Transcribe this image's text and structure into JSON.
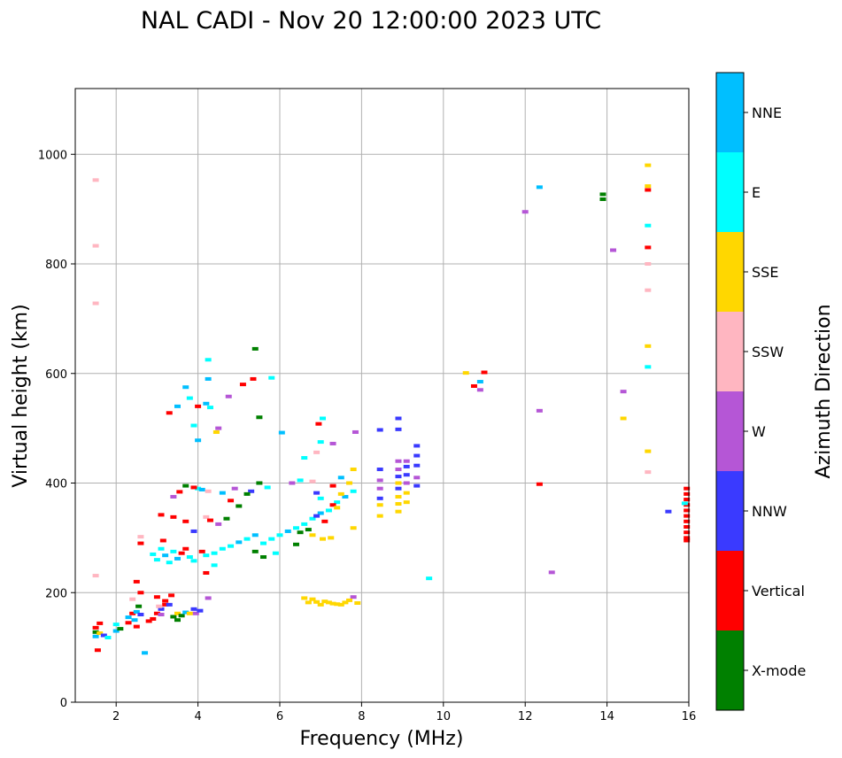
{
  "chart_data": {
    "type": "scatter",
    "title": "NAL CADI - Nov 20 12:00:00 2023 UTC",
    "xlabel": "Frequency (MHz)",
    "ylabel": "Virtual height (km)",
    "xlim": [
      1,
      16
    ],
    "ylim": [
      0,
      1120
    ],
    "xticks": [
      2,
      4,
      6,
      8,
      10,
      12,
      14,
      16
    ],
    "yticks": [
      0,
      200,
      400,
      600,
      800,
      1000
    ],
    "grid": true,
    "colorbar": {
      "label": "Azimuth Direction",
      "categories": [
        {
          "name": "X-mode",
          "color": "#008000"
        },
        {
          "name": "Vertical",
          "color": "#ff0000"
        },
        {
          "name": "NNW",
          "color": "#3a3aff"
        },
        {
          "name": "W",
          "color": "#b556d6"
        },
        {
          "name": "SSW",
          "color": "#ffb6c1"
        },
        {
          "name": "SSE",
          "color": "#ffd700"
        },
        {
          "name": "E",
          "color": "#00ffff"
        },
        {
          "name": "NNE",
          "color": "#00bfff"
        }
      ]
    },
    "points": [
      [
        "Vertical",
        15.95,
        300
      ],
      [
        "Vertical",
        15.95,
        310
      ],
      [
        "Vertical",
        15.95,
        320
      ],
      [
        "Vertical",
        15.95,
        330
      ],
      [
        "Vertical",
        15.95,
        340
      ],
      [
        "Vertical",
        15.95,
        350
      ],
      [
        "Vertical",
        15.95,
        360
      ],
      [
        "Vertical",
        15.95,
        370
      ],
      [
        "Vertical",
        15.95,
        380
      ],
      [
        "Vertical",
        15.95,
        390
      ],
      [
        "Vertical",
        15.95,
        295
      ],
      [
        "NNW",
        15.5,
        348
      ],
      [
        "E",
        15.9,
        363
      ],
      [
        "SSE",
        15.0,
        980
      ],
      [
        "SSE",
        15.0,
        942
      ],
      [
        "Vertical",
        15.0,
        935
      ],
      [
        "NNE",
        12.35,
        940
      ],
      [
        "X-mode",
        13.9,
        927
      ],
      [
        "X-mode",
        13.9,
        918
      ],
      [
        "W",
        12.0,
        895
      ],
      [
        "E",
        15.0,
        870
      ],
      [
        "Vertical",
        15.0,
        830
      ],
      [
        "W",
        14.15,
        825
      ],
      [
        "SSW",
        15.0,
        800
      ],
      [
        "SSW",
        15.0,
        752
      ],
      [
        "SSE",
        15.0,
        650
      ],
      [
        "E",
        15.0,
        612
      ],
      [
        "W",
        14.4,
        567
      ],
      [
        "SSE",
        14.4,
        518
      ],
      [
        "W",
        12.35,
        532
      ],
      [
        "SSE",
        15.0,
        458
      ],
      [
        "SSW",
        15.0,
        420
      ],
      [
        "Vertical",
        12.35,
        398
      ],
      [
        "W",
        12.65,
        237
      ],
      [
        "SSE",
        10.55,
        601
      ],
      [
        "Vertical",
        11.0,
        602
      ],
      [
        "NNE",
        10.9,
        585
      ],
      [
        "Vertical",
        10.75,
        577
      ],
      [
        "W",
        10.9,
        570
      ],
      [
        "E",
        9.65,
        226
      ],
      [
        "SSW",
        1.5,
        953
      ],
      [
        "SSW",
        1.5,
        833
      ],
      [
        "SSW",
        1.5,
        728
      ],
      [
        "SSW",
        1.5,
        231
      ],
      [
        "X-mode",
        5.4,
        645
      ],
      [
        "E",
        4.25,
        625
      ],
      [
        "NNE",
        4.25,
        590
      ],
      [
        "Vertical",
        5.35,
        590
      ],
      [
        "E",
        5.8,
        592
      ],
      [
        "Vertical",
        5.1,
        580
      ],
      [
        "W",
        4.75,
        558
      ],
      [
        "NNE",
        3.7,
        575
      ],
      [
        "E",
        3.8,
        555
      ],
      [
        "NNE",
        4.2,
        545
      ],
      [
        "Vertical",
        4.0,
        540
      ],
      [
        "E",
        4.3,
        538
      ],
      [
        "NNE",
        3.5,
        540
      ],
      [
        "Vertical",
        3.3,
        528
      ],
      [
        "X-mode",
        5.5,
        520
      ],
      [
        "NNE",
        4.0,
        478
      ],
      [
        "E",
        3.9,
        505
      ],
      [
        "SSE",
        4.45,
        493
      ],
      [
        "W",
        4.5,
        500
      ],
      [
        "NNE",
        6.05,
        492
      ],
      [
        "E",
        7.05,
        518
      ],
      [
        "Vertical",
        6.95,
        508
      ],
      [
        "E",
        6.6,
        446
      ],
      [
        "W",
        7.3,
        472
      ],
      [
        "E",
        7.0,
        475
      ],
      [
        "SSW",
        6.9,
        456
      ],
      [
        "SSE",
        8.45,
        340
      ],
      [
        "SSE",
        8.45,
        360
      ],
      [
        "NNW",
        8.45,
        372
      ],
      [
        "W",
        8.45,
        390
      ],
      [
        "W",
        8.45,
        405
      ],
      [
        "NNW",
        8.45,
        425
      ],
      [
        "NNW",
        8.45,
        497
      ],
      [
        "NNW",
        8.9,
        518
      ],
      [
        "NNW",
        8.9,
        498
      ],
      [
        "W",
        8.9,
        440
      ],
      [
        "W",
        8.9,
        425
      ],
      [
        "NNW",
        8.9,
        412
      ],
      [
        "SSE",
        8.9,
        400
      ],
      [
        "NNW",
        8.9,
        390
      ],
      [
        "SSE",
        8.9,
        375
      ],
      [
        "SSE",
        8.9,
        362
      ],
      [
        "SSE",
        8.9,
        348
      ],
      [
        "W",
        9.1,
        440
      ],
      [
        "NNW",
        9.1,
        430
      ],
      [
        "NNW",
        9.1,
        415
      ],
      [
        "W",
        9.1,
        400
      ],
      [
        "SSE",
        9.1,
        382
      ],
      [
        "SSE",
        9.1,
        365
      ],
      [
        "NNW",
        9.35,
        468
      ],
      [
        "NNW",
        9.35,
        450
      ],
      [
        "NNW",
        9.35,
        432
      ],
      [
        "W",
        9.35,
        410
      ],
      [
        "NNW",
        9.35,
        395
      ],
      [
        "W",
        7.85,
        493
      ],
      [
        "SSE",
        6.6,
        190
      ],
      [
        "SSE",
        6.8,
        188
      ],
      [
        "SSE",
        6.9,
        183
      ],
      [
        "SSE",
        7.0,
        178
      ],
      [
        "SSE",
        7.2,
        182
      ],
      [
        "SSE",
        7.4,
        179
      ],
      [
        "SSE",
        7.6,
        182
      ],
      [
        "W",
        7.8,
        192
      ],
      [
        "SSE",
        6.7,
        182
      ],
      [
        "SSE",
        7.1,
        184
      ],
      [
        "SSE",
        7.3,
        180
      ],
      [
        "SSE",
        7.5,
        178
      ],
      [
        "SSE",
        7.7,
        186
      ],
      [
        "SSE",
        7.9,
        181
      ],
      [
        "X-mode",
        1.5,
        128
      ],
      [
        "Vertical",
        1.5,
        136
      ],
      [
        "NNE",
        1.5,
        120
      ],
      [
        "SSE",
        1.6,
        126
      ],
      [
        "NNW",
        1.7,
        122
      ],
      [
        "Vertical",
        1.6,
        144
      ],
      [
        "E",
        1.8,
        118
      ],
      [
        "NNE",
        2.0,
        130
      ],
      [
        "X-mode",
        2.1,
        134
      ],
      [
        "E",
        2.0,
        142
      ],
      [
        "Vertical",
        1.55,
        95
      ],
      [
        "Vertical",
        2.3,
        145
      ],
      [
        "NNE",
        2.3,
        155
      ],
      [
        "Vertical",
        2.4,
        162
      ],
      [
        "NNE",
        2.5,
        165
      ],
      [
        "X-mode",
        2.55,
        175
      ],
      [
        "Vertical",
        2.5,
        138
      ],
      [
        "NNE",
        2.45,
        150
      ],
      [
        "NNW",
        2.6,
        160
      ],
      [
        "Vertical",
        2.5,
        220
      ],
      [
        "NNE",
        2.7,
        90
      ],
      [
        "SSW",
        2.4,
        188
      ],
      [
        "Vertical",
        2.6,
        200
      ],
      [
        "Vertical",
        2.9,
        152
      ],
      [
        "Vertical",
        3.0,
        162
      ],
      [
        "NNW",
        3.1,
        170
      ],
      [
        "Vertical",
        3.2,
        178
      ],
      [
        "X-mode",
        3.4,
        156
      ],
      [
        "SSE",
        3.5,
        162
      ],
      [
        "X-mode",
        3.6,
        158
      ],
      [
        "NNE",
        3.7,
        164
      ],
      [
        "SSE",
        3.8,
        162
      ],
      [
        "NNW",
        3.9,
        170
      ],
      [
        "W",
        3.95,
        162
      ],
      [
        "NNW",
        4.05,
        167
      ],
      [
        "Vertical",
        3.0,
        192
      ],
      [
        "Vertical",
        3.2,
        185
      ],
      [
        "NNW",
        3.3,
        178
      ],
      [
        "W",
        3.1,
        160
      ],
      [
        "X-mode",
        3.5,
        150
      ],
      [
        "Vertical",
        2.8,
        148
      ],
      [
        "SSW",
        3.05,
        175
      ],
      [
        "Vertical",
        3.35,
        195
      ],
      [
        "W",
        4.25,
        190
      ],
      [
        "E",
        2.9,
        270
      ],
      [
        "E",
        3.0,
        260
      ],
      [
        "E",
        3.1,
        280
      ],
      [
        "NNE",
        3.2,
        268
      ],
      [
        "E",
        3.3,
        255
      ],
      [
        "E",
        3.4,
        275
      ],
      [
        "NNE",
        3.5,
        262
      ],
      [
        "Vertical",
        3.6,
        272
      ],
      [
        "Vertical",
        3.7,
        280
      ],
      [
        "E",
        3.8,
        265
      ],
      [
        "E",
        3.9,
        258
      ],
      [
        "Vertical",
        4.1,
        275
      ],
      [
        "E",
        4.2,
        268
      ],
      [
        "E",
        4.4,
        272
      ],
      [
        "E",
        4.6,
        280
      ],
      [
        "E",
        4.8,
        285
      ],
      [
        "NNE",
        5.0,
        292
      ],
      [
        "E",
        5.2,
        298
      ],
      [
        "NNE",
        5.4,
        305
      ],
      [
        "E",
        5.6,
        290
      ],
      [
        "E",
        5.8,
        298
      ],
      [
        "E",
        6.0,
        305
      ],
      [
        "NNE",
        6.2,
        312
      ],
      [
        "E",
        6.4,
        318
      ],
      [
        "E",
        6.6,
        325
      ],
      [
        "E",
        6.8,
        335
      ],
      [
        "NNE",
        7.0,
        345
      ],
      [
        "E",
        7.2,
        350
      ],
      [
        "E",
        7.4,
        365
      ],
      [
        "NNE",
        7.6,
        375
      ],
      [
        "E",
        7.8,
        385
      ],
      [
        "X-mode",
        6.5,
        310
      ],
      [
        "X-mode",
        6.7,
        315
      ],
      [
        "NNW",
        6.9,
        340
      ],
      [
        "Vertical",
        7.1,
        330
      ],
      [
        "SSE",
        7.5,
        380
      ],
      [
        "SSE",
        7.7,
        400
      ],
      [
        "SSE",
        7.8,
        425
      ],
      [
        "NNE",
        7.5,
        410
      ],
      [
        "Vertical",
        7.3,
        395
      ],
      [
        "SSE",
        7.25,
        300
      ],
      [
        "SSE",
        7.05,
        298
      ],
      [
        "SSE",
        6.8,
        305
      ],
      [
        "SSE",
        7.8,
        318
      ],
      [
        "X-mode",
        5.4,
        275
      ],
      [
        "X-mode",
        5.6,
        265
      ],
      [
        "E",
        5.9,
        272
      ],
      [
        "X-mode",
        5.0,
        358
      ],
      [
        "NNW",
        5.3,
        385
      ],
      [
        "X-mode",
        5.5,
        400
      ],
      [
        "E",
        5.7,
        392
      ],
      [
        "W",
        6.3,
        400
      ],
      [
        "SSW",
        6.8,
        403
      ],
      [
        "E",
        6.5,
        405
      ],
      [
        "NNW",
        6.9,
        382
      ],
      [
        "E",
        7.0,
        372
      ],
      [
        "Vertical",
        7.3,
        360
      ],
      [
        "SSE",
        7.4,
        355
      ],
      [
        "X-mode",
        6.4,
        288
      ],
      [
        "Vertical",
        3.1,
        342
      ],
      [
        "Vertical",
        3.4,
        338
      ],
      [
        "Vertical",
        3.7,
        330
      ],
      [
        "SSW",
        4.2,
        338
      ],
      [
        "Vertical",
        4.3,
        332
      ],
      [
        "W",
        4.5,
        325
      ],
      [
        "X-mode",
        4.7,
        335
      ],
      [
        "NNW",
        3.9,
        312
      ],
      [
        "Vertical",
        3.15,
        295
      ],
      [
        "Vertical",
        2.6,
        290
      ],
      [
        "SSW",
        2.6,
        302
      ],
      [
        "E",
        4.0,
        390
      ],
      [
        "NNE",
        4.1,
        388
      ],
      [
        "Vertical",
        3.9,
        392
      ],
      [
        "X-mode",
        3.7,
        395
      ],
      [
        "Vertical",
        3.55,
        384
      ],
      [
        "W",
        3.4,
        375
      ],
      [
        "SSW",
        4.25,
        385
      ],
      [
        "NNE",
        4.6,
        382
      ],
      [
        "W",
        4.9,
        390
      ],
      [
        "X-mode",
        5.2,
        380
      ],
      [
        "Vertical",
        4.2,
        236
      ],
      [
        "Vertical",
        4.8,
        368
      ],
      [
        "E",
        4.4,
        250
      ]
    ]
  }
}
